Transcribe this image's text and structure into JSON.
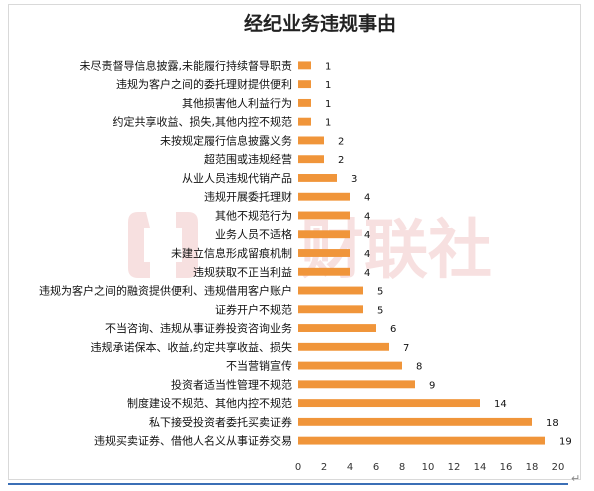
{
  "chart_data": {
    "type": "bar",
    "orientation": "horizontal",
    "title": "经纪业务违规事由",
    "categories": [
      "未尽责督导信息披露,未能履行持续督导职责",
      "违规为客户之间的委托理财提供便利",
      "其他损害他人利益行为",
      "约定共享收益、损失,其他内控不规范",
      "未按规定履行信息披露义务",
      "超范围或违规经营",
      "从业人员违规代销产品",
      "违规开展委托理财",
      "其他不规范行为",
      "业务人员不适格",
      "未建立信息形成留痕机制",
      "违规获取不正当利益",
      "违规为客户之间的融资提供便利、违规借用客户账户",
      "证券开户不规范",
      "不当咨询、违规从事证券投资咨询业务",
      "违规承诺保本、收益,约定共享收益、损失",
      "不当营销宣传",
      "投资者适当性管理不规范",
      "制度建设不规范、其他内控不规范",
      "私下接受投资者委托买卖证券",
      "违规买卖证券、借他人名义从事证券交易"
    ],
    "values": [
      1,
      1,
      1,
      1,
      2,
      2,
      3,
      4,
      4,
      4,
      4,
      4,
      5,
      5,
      6,
      7,
      8,
      9,
      14,
      18,
      19
    ],
    "xlim": [
      0,
      20
    ],
    "xticks": [
      0,
      2,
      4,
      6,
      8,
      10,
      12,
      14,
      16,
      18,
      20
    ],
    "grid": false,
    "legend": "none",
    "bar_color": "#f0953a"
  },
  "watermark_text": "财联社",
  "watermark_color": "#f2c8c8"
}
